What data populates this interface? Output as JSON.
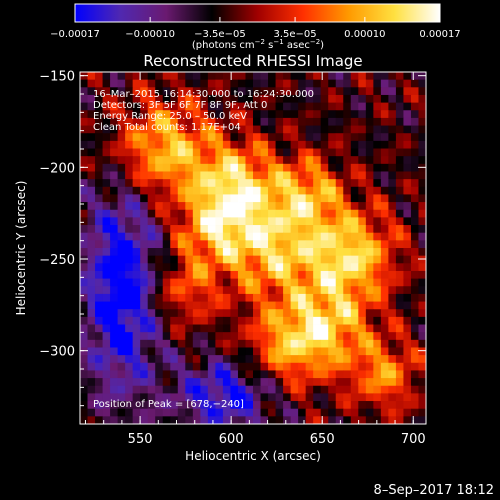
{
  "chart_data": {
    "type": "heatmap",
    "title": "Reconstructed RHESSI Image",
    "xlabel": "Heliocentric X (arcsec)",
    "ylabel": "Heliocentric Y (arcsec)",
    "xlim": [
      517,
      707
    ],
    "ylim": [
      -340,
      -148
    ],
    "x_ticks": [
      550,
      600,
      650,
      700
    ],
    "x_tick_labels": [
      "550",
      "600",
      "650",
      "700"
    ],
    "y_ticks": [
      -150,
      -200,
      -250,
      -300
    ],
    "y_tick_labels": [
      "−150",
      "−200",
      "−250",
      "−300"
    ],
    "colorbar": {
      "range": [
        -0.00017,
        0.00017
      ],
      "tick_values": [
        -0.00017,
        -0.0001,
        -3.5e-05,
        3.5e-05,
        0.0001,
        0.00017
      ],
      "tick_labels": [
        "−0.00017",
        "−0.00010",
        "−3.5e−05",
        "3.5e−05",
        "0.00010",
        "0.00017"
      ],
      "units_text": "(photons cm",
      "units_exp1": "−2",
      "units_mid": " s",
      "units_exp2": "−1",
      "units_tail": " asec",
      "units_exp3": "−2",
      "units_close": ")",
      "colormap": [
        "#0000ff",
        "#5028b0",
        "#6a1a70",
        "#000000",
        "#a00000",
        "#ff3000",
        "#ff9a00",
        "#ffe040",
        "#ffffff"
      ]
    },
    "info_lines": [
      "16–Mar–2015 16:14:30.000 to 16:24:30.000",
      "Detectors: 3F 5F 6F 7F 8F 9F, Att 0",
      "Energy Range: 25.0 – 50.0 keV",
      "Clean     Total counts: 1.17E+04"
    ],
    "peak_text": "Position of Peak = [678,−240]",
    "peak_position": [
      678,
      -240
    ],
    "grid": false
  },
  "footer_date": "8–Sep–2017 18:12"
}
